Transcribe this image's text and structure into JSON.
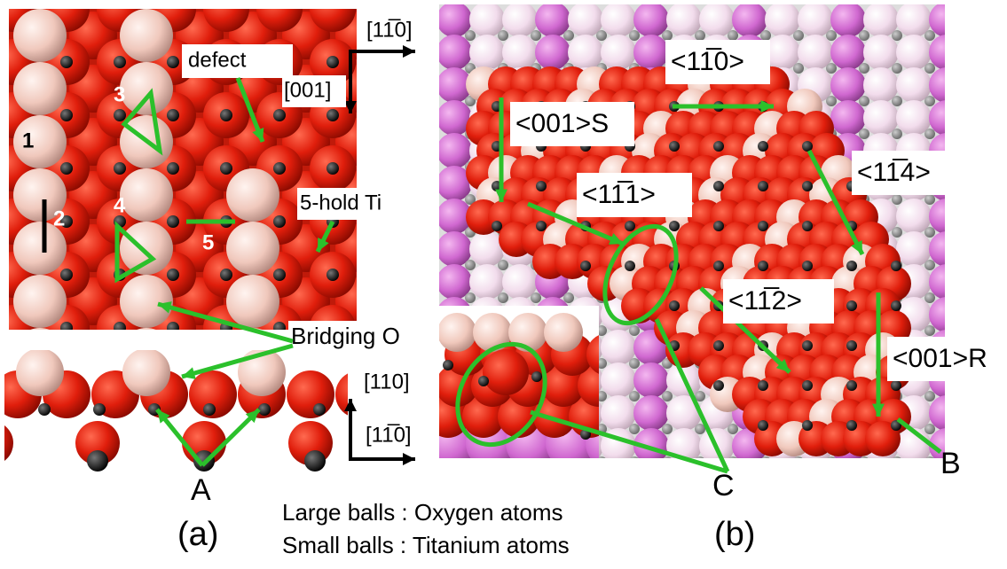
{
  "panel_a": {
    "numbers": [
      "1",
      "2",
      "3",
      "4",
      "5"
    ],
    "defect": "defect",
    "five_hold_ti": "5-hold Ti",
    "bridging_o": "Bridging O",
    "a_label": "A",
    "top_axes": {
      "x": "[11̅0]",
      "y": "[001]"
    },
    "side_axes": {
      "y": "[110]",
      "x": "[11̅0]"
    },
    "caption": "(a)"
  },
  "panel_b": {
    "directions": [
      "<11̅0>",
      "<001>S",
      "<11̅1>",
      "<11̅4>",
      "<11̅2>",
      "<001>R"
    ],
    "b_label": "B",
    "c_label": "C",
    "caption": "(b)"
  },
  "legend": [
    "Large balls : Oxygen atoms",
    "Small balls : Titanium atoms"
  ]
}
